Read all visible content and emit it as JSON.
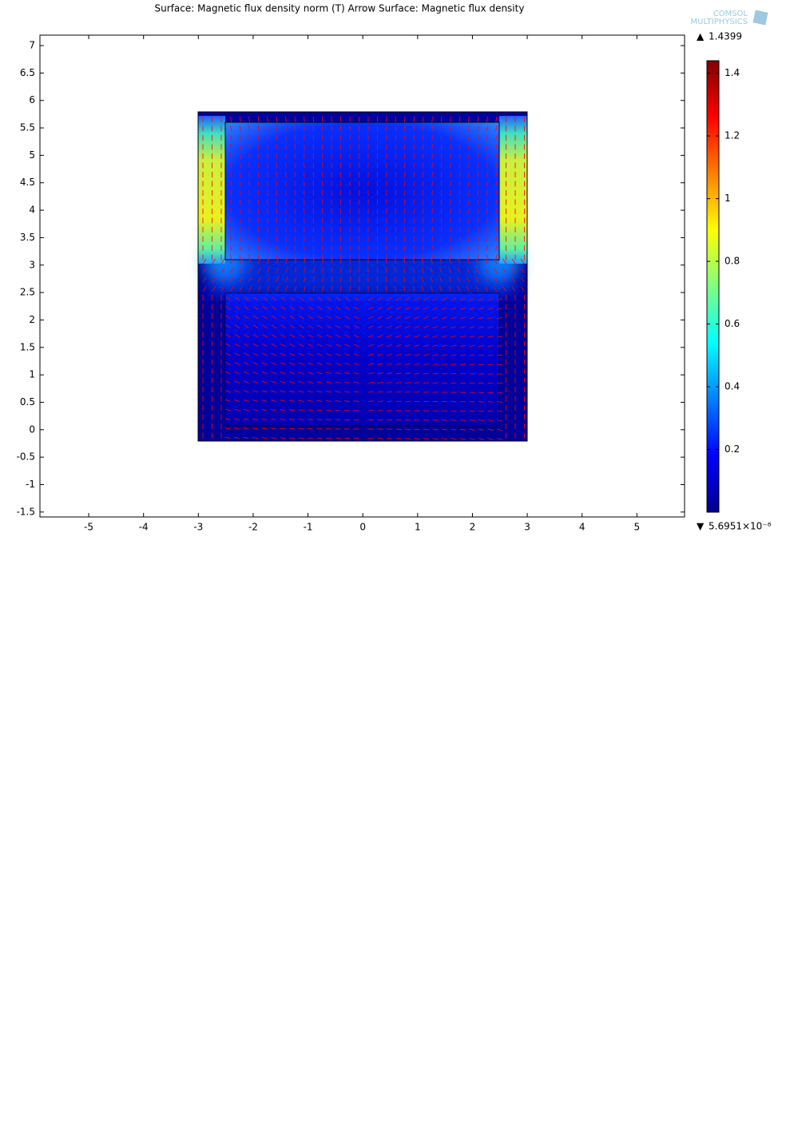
{
  "chart_data": {
    "type": "surface",
    "title": "Surface: Magnetic flux density norm (T)  Arrow Surface: Magnetic flux density",
    "logo": [
      "COMSOL",
      "MULTIPHYSICS"
    ],
    "xlim": [
      -5.89,
      5.87
    ],
    "ylim": [
      -1.59,
      7.19
    ],
    "xticks": [
      -5,
      -4,
      -3,
      -2,
      -1,
      0,
      1,
      2,
      3,
      4,
      5
    ],
    "yticks": [
      -1.5,
      -1,
      -0.5,
      0,
      0.5,
      1,
      1.5,
      2,
      2.5,
      3,
      3.5,
      4,
      4.5,
      5,
      5.5,
      6,
      6.5,
      7
    ],
    "colorbar": {
      "lim": [
        5.6951e-08,
        1.4399
      ],
      "ticks": [
        0.2,
        0.4,
        0.6,
        0.8,
        1,
        1.2,
        1.4
      ],
      "max_label": "1.4399",
      "min_label": "5.6951×10⁻⁸"
    },
    "arrow_color": "#ff0000"
  }
}
